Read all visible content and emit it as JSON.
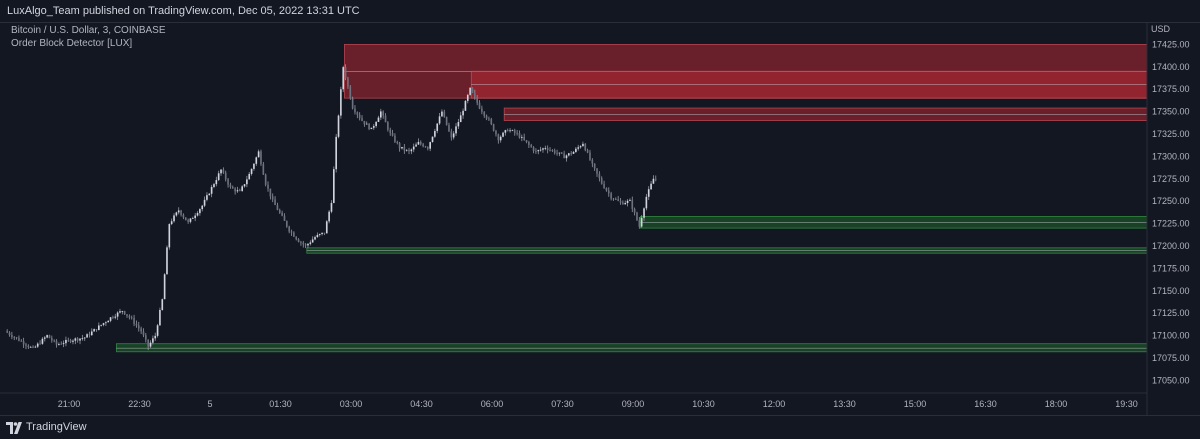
{
  "header": {
    "published": "LuxAlgo_Team published on TradingView.com, Dec 05, 2022 13:31 UTC"
  },
  "legend": {
    "symbol": "Bitcoin / U.S. Dollar, 3, COINBASE",
    "indicator": "Order Block Detector [LUX]"
  },
  "footer": {
    "brand": "TradingView"
  },
  "colors": {
    "background": "#131722",
    "bearish_block": "#b22833",
    "bullish_block": "#1e6b2a",
    "candle": "#d1d4dc"
  },
  "chart_data": {
    "type": "candlestick",
    "price_unit": "USD",
    "y_ticks": [
      17425,
      17400,
      17375,
      17350,
      17325,
      17300,
      17275,
      17250,
      17225,
      17200,
      17175,
      17150,
      17125,
      17100,
      17075,
      17050
    ],
    "y_tick_labels": [
      "17425.00",
      "17400.00",
      "17375.00",
      "17350.00",
      "17325.00",
      "17300.00",
      "17275.00",
      "17250.00",
      "17225.00",
      "17200.00",
      "17175.00",
      "17150.00",
      "17125.00",
      "17100.00",
      "17075.00",
      "17050.00"
    ],
    "x_tick_labels": [
      "21:00",
      "22:30",
      "5",
      "01:30",
      "03:00",
      "04:30",
      "06:00",
      "07:30",
      "09:00",
      "10:30",
      "12:00",
      "13:30",
      "15:00",
      "16:30",
      "18:00",
      "19:30"
    ],
    "ylim": [
      17036,
      17450
    ],
    "bars_per_tick": 30,
    "price_path": [
      [
        0,
        17105
      ],
      [
        8,
        17092
      ],
      [
        12,
        17085
      ],
      [
        18,
        17100
      ],
      [
        22,
        17090
      ],
      [
        28,
        17095
      ],
      [
        34,
        17098
      ],
      [
        40,
        17110
      ],
      [
        45,
        17120
      ],
      [
        50,
        17128
      ],
      [
        54,
        17118
      ],
      [
        58,
        17105
      ],
      [
        61,
        17088
      ],
      [
        64,
        17100
      ],
      [
        67,
        17140
      ],
      [
        70,
        17225
      ],
      [
        74,
        17240
      ],
      [
        78,
        17226
      ],
      [
        84,
        17245
      ],
      [
        88,
        17265
      ],
      [
        92,
        17285
      ],
      [
        96,
        17265
      ],
      [
        100,
        17260
      ],
      [
        104,
        17280
      ],
      [
        108,
        17305
      ],
      [
        111,
        17270
      ],
      [
        114,
        17250
      ],
      [
        118,
        17232
      ],
      [
        121,
        17218
      ],
      [
        125,
        17206
      ],
      [
        128,
        17200
      ],
      [
        132,
        17210
      ],
      [
        136,
        17215
      ],
      [
        139,
        17250
      ],
      [
        141,
        17320
      ],
      [
        144,
        17400
      ],
      [
        148,
        17355
      ],
      [
        152,
        17340
      ],
      [
        156,
        17330
      ],
      [
        160,
        17350
      ],
      [
        164,
        17325
      ],
      [
        168,
        17310
      ],
      [
        172,
        17305
      ],
      [
        176,
        17315
      ],
      [
        180,
        17310
      ],
      [
        186,
        17350
      ],
      [
        190,
        17320
      ],
      [
        194,
        17345
      ],
      [
        198,
        17375
      ],
      [
        202,
        17355
      ],
      [
        206,
        17340
      ],
      [
        210,
        17320
      ],
      [
        214,
        17330
      ],
      [
        218,
        17325
      ],
      [
        222,
        17315
      ],
      [
        226,
        17305
      ],
      [
        230,
        17310
      ],
      [
        234,
        17305
      ],
      [
        238,
        17300
      ],
      [
        242,
        17305
      ],
      [
        246,
        17315
      ],
      [
        250,
        17290
      ],
      [
        254,
        17270
      ],
      [
        258,
        17255
      ],
      [
        262,
        17248
      ],
      [
        266,
        17250
      ],
      [
        270,
        17222
      ],
      [
        273,
        17255
      ],
      [
        276,
        17275
      ]
    ],
    "order_blocks": [
      {
        "kind": "bearish",
        "start_bar": 144,
        "top": 17425,
        "bottom": 17365,
        "midline": 17395
      },
      {
        "kind": "bearish",
        "start_bar": 198,
        "top": 17395,
        "bottom": 17365,
        "midline": 17380
      },
      {
        "kind": "bearish",
        "start_bar": 212,
        "top": 17354,
        "bottom": 17340,
        "midline": 17347
      },
      {
        "kind": "bullish",
        "start_bar": 270,
        "top": 17233,
        "bottom": 17220,
        "midline": 17226
      },
      {
        "kind": "bullish",
        "start_bar": 128,
        "top": 17198,
        "bottom": 17192,
        "midline": 17195
      },
      {
        "kind": "bullish",
        "start_bar": 47,
        "top": 17091,
        "bottom": 17082,
        "midline": 17086
      }
    ]
  }
}
